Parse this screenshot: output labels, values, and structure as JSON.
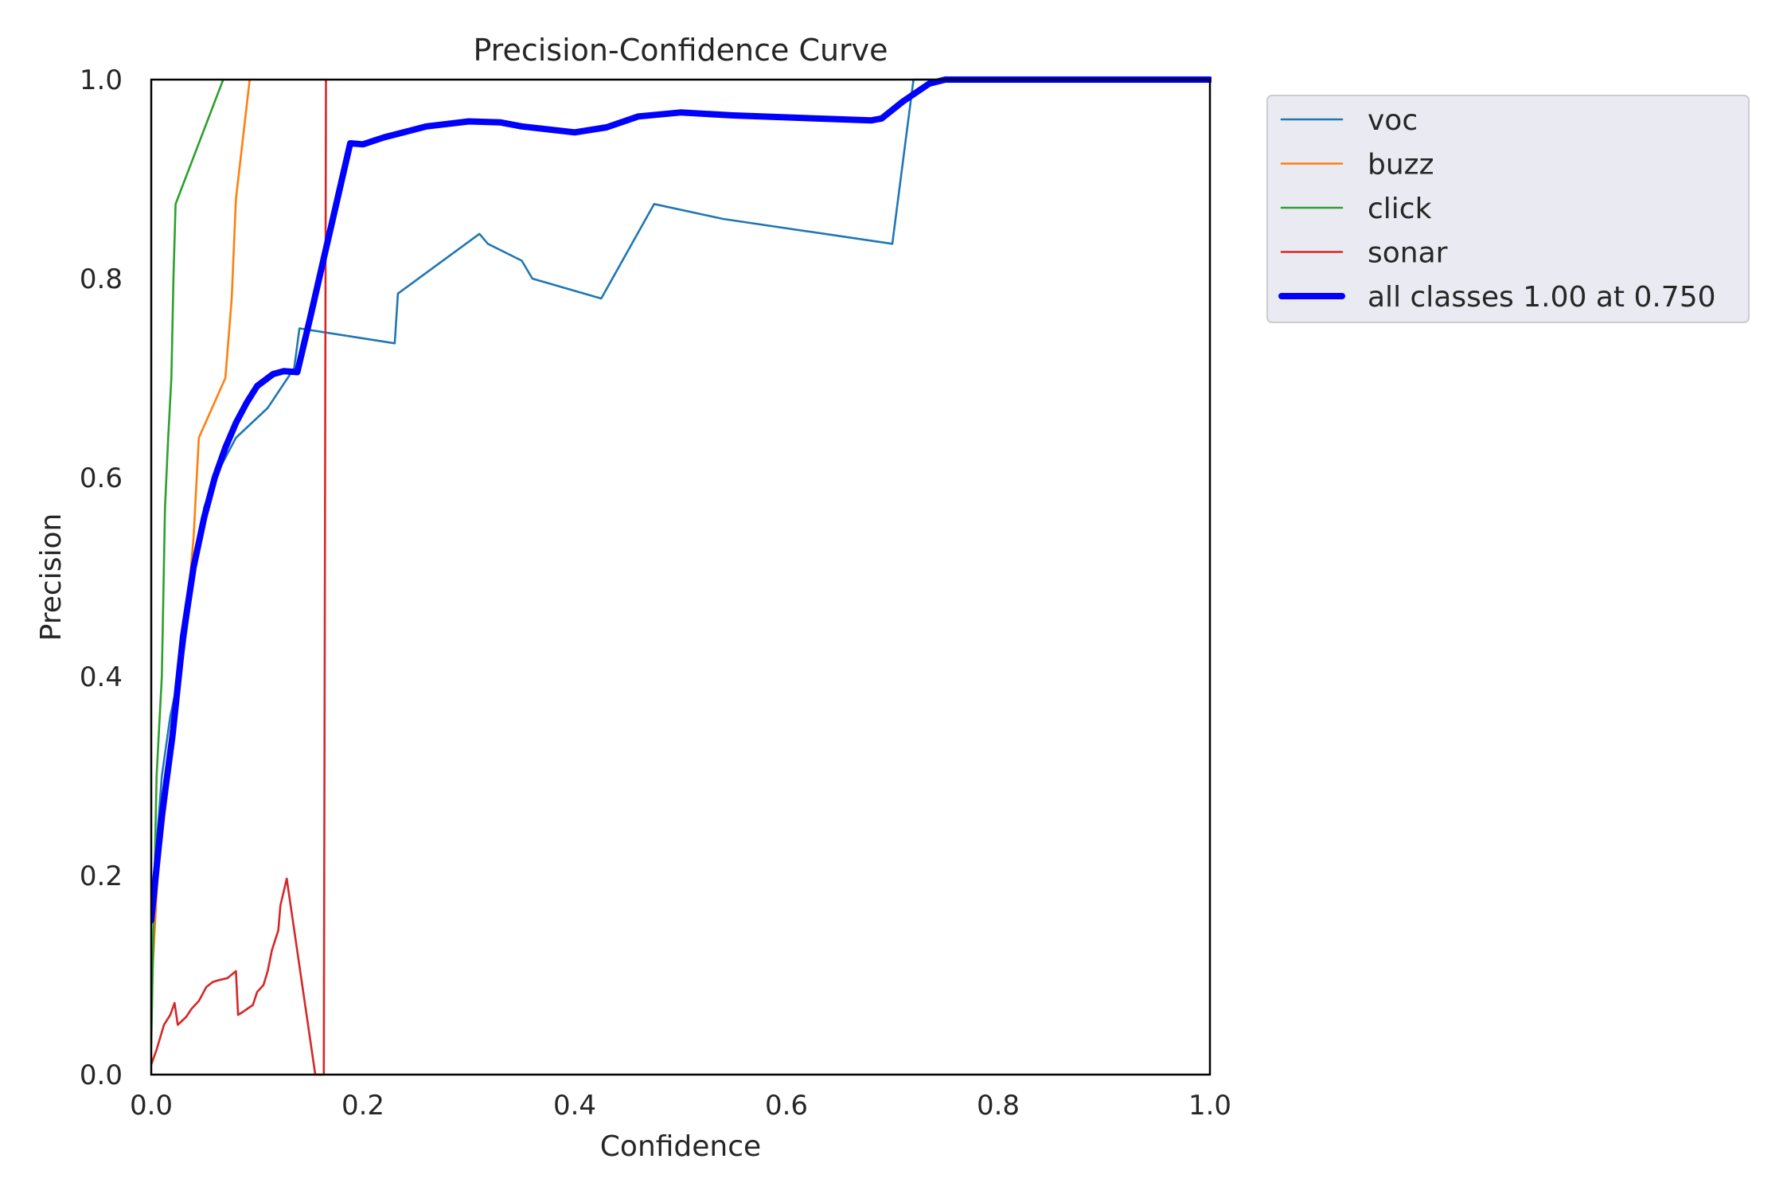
{
  "chart_data": {
    "type": "line",
    "title": "Precision-Confidence Curve",
    "xlabel": "Confidence",
    "ylabel": "Precision",
    "xlim": [
      0,
      1
    ],
    "ylim": [
      0,
      1
    ],
    "xticks": [
      "0.0",
      "0.2",
      "0.4",
      "0.6",
      "0.8",
      "1.0"
    ],
    "yticks": [
      "0.0",
      "0.2",
      "0.4",
      "0.6",
      "0.8",
      "1.0"
    ],
    "grid": false,
    "legend_position": "outside-top-right",
    "series": [
      {
        "name": "voc",
        "color": "#1f77b4",
        "points": [
          [
            0,
            0.16
          ],
          [
            0.01,
            0.3
          ],
          [
            0.018,
            0.36
          ],
          [
            0.03,
            0.42
          ],
          [
            0.04,
            0.5
          ],
          [
            0.05,
            0.57
          ],
          [
            0.06,
            0.6
          ],
          [
            0.08,
            0.64
          ],
          [
            0.11,
            0.67
          ],
          [
            0.135,
            0.71
          ],
          [
            0.14,
            0.75
          ],
          [
            0.23,
            0.735
          ],
          [
            0.233,
            0.785
          ],
          [
            0.31,
            0.845
          ],
          [
            0.318,
            0.835
          ],
          [
            0.35,
            0.818
          ],
          [
            0.36,
            0.8
          ],
          [
            0.425,
            0.78
          ],
          [
            0.475,
            0.875
          ],
          [
            0.54,
            0.86
          ],
          [
            0.7,
            0.835
          ],
          [
            0.72,
            1.0
          ],
          [
            1.0,
            1.0
          ]
        ]
      },
      {
        "name": "buzz",
        "color": "#ff7f0e",
        "points": [
          [
            0,
            0.08
          ],
          [
            0.006,
            0.2
          ],
          [
            0.02,
            0.33
          ],
          [
            0.035,
            0.48
          ],
          [
            0.04,
            0.54
          ],
          [
            0.045,
            0.64
          ],
          [
            0.07,
            0.7
          ],
          [
            0.076,
            0.78
          ],
          [
            0.08,
            0.88
          ],
          [
            0.093,
            1.0
          ]
        ]
      },
      {
        "name": "click",
        "color": "#2ca02c",
        "points": [
          [
            0,
            0.03
          ],
          [
            0.005,
            0.3
          ],
          [
            0.01,
            0.4
          ],
          [
            0.013,
            0.57
          ],
          [
            0.016,
            0.64
          ],
          [
            0.019,
            0.7
          ],
          [
            0.021,
            0.8
          ],
          [
            0.023,
            0.875
          ],
          [
            0.068,
            1.0
          ]
        ]
      },
      {
        "name": "sonar",
        "color": "#d62728",
        "points": [
          [
            0,
            0.01
          ],
          [
            0.005,
            0.025
          ],
          [
            0.012,
            0.05
          ],
          [
            0.018,
            0.06
          ],
          [
            0.022,
            0.072
          ],
          [
            0.025,
            0.05
          ],
          [
            0.033,
            0.058
          ],
          [
            0.038,
            0.066
          ],
          [
            0.045,
            0.074
          ],
          [
            0.052,
            0.088
          ],
          [
            0.058,
            0.093
          ],
          [
            0.064,
            0.095
          ],
          [
            0.072,
            0.097
          ],
          [
            0.08,
            0.104
          ],
          [
            0.082,
            0.06
          ],
          [
            0.088,
            0.064
          ],
          [
            0.096,
            0.07
          ],
          [
            0.1,
            0.083
          ],
          [
            0.106,
            0.09
          ],
          [
            0.11,
            0.104
          ],
          [
            0.114,
            0.125
          ],
          [
            0.12,
            0.145
          ],
          [
            0.122,
            0.17
          ],
          [
            0.128,
            0.197
          ],
          [
            0.155,
            0.0
          ],
          [
            0.163,
            0.0
          ],
          [
            0.165,
            1.0
          ]
        ]
      },
      {
        "name": "all classes 1.00 at 0.750",
        "color": "#0000ff",
        "bold": true,
        "points": [
          [
            0,
            0.155
          ],
          [
            0.01,
            0.26
          ],
          [
            0.02,
            0.34
          ],
          [
            0.03,
            0.44
          ],
          [
            0.04,
            0.51
          ],
          [
            0.05,
            0.56
          ],
          [
            0.06,
            0.6
          ],
          [
            0.07,
            0.63
          ],
          [
            0.08,
            0.655
          ],
          [
            0.09,
            0.675
          ],
          [
            0.1,
            0.692
          ],
          [
            0.115,
            0.704
          ],
          [
            0.125,
            0.707
          ],
          [
            0.138,
            0.706
          ],
          [
            0.15,
            0.76
          ],
          [
            0.165,
            0.83
          ],
          [
            0.188,
            0.936
          ],
          [
            0.2,
            0.935
          ],
          [
            0.22,
            0.942
          ],
          [
            0.26,
            0.953
          ],
          [
            0.3,
            0.958
          ],
          [
            0.33,
            0.957
          ],
          [
            0.35,
            0.953
          ],
          [
            0.4,
            0.947
          ],
          [
            0.43,
            0.952
          ],
          [
            0.46,
            0.963
          ],
          [
            0.5,
            0.967
          ],
          [
            0.55,
            0.964
          ],
          [
            0.68,
            0.959
          ],
          [
            0.69,
            0.961
          ],
          [
            0.71,
            0.978
          ],
          [
            0.735,
            0.996
          ],
          [
            0.75,
            1.0
          ],
          [
            1.0,
            1.0
          ]
        ]
      }
    ]
  }
}
